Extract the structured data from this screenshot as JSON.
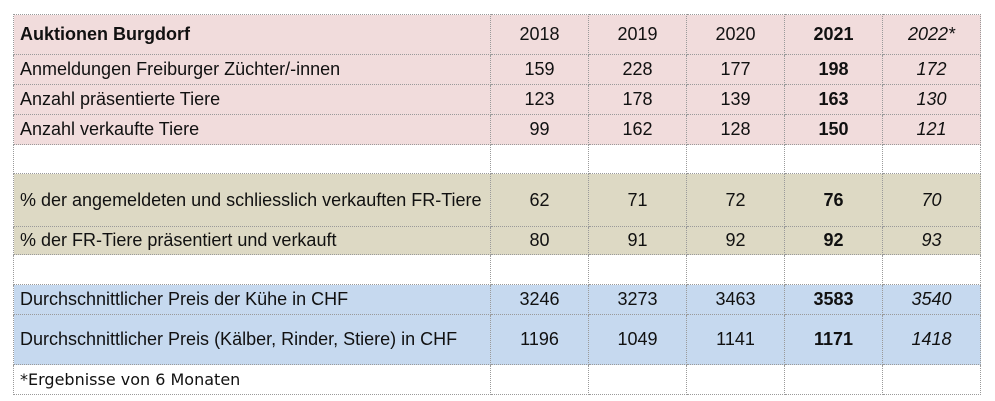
{
  "header": {
    "title": "Auktionen Burgdorf",
    "years": [
      "2018",
      "2019",
      "2020",
      "2021",
      "2022*"
    ]
  },
  "rows": [
    {
      "label": "Anmeldungen Freiburger Züchter/-innen",
      "values": [
        "159",
        "228",
        "177",
        "198",
        "172"
      ]
    },
    {
      "label": "Anzahl präsentierte Tiere",
      "values": [
        "123",
        "178",
        "139",
        "163",
        "130"
      ]
    },
    {
      "label": "Anzahl verkaufte Tiere",
      "values": [
        "99",
        "162",
        "128",
        "150",
        "121"
      ]
    },
    {
      "label": "% der angemeldeten und schliesslich verkauften FR-Tiere",
      "values": [
        "62",
        "71",
        "72",
        "76",
        "70"
      ]
    },
    {
      "label": "% der FR-Tiere präsentiert und verkauft",
      "values": [
        "80",
        "91",
        "92",
        "92",
        "93"
      ]
    },
    {
      "label": "Durchschnittlicher Preis der Kühe in CHF",
      "values": [
        "3246",
        "3273",
        "3463",
        "3583",
        "3540"
      ]
    },
    {
      "label": "Durchschnittlicher Preis (Kälber, Rinder, Stiere) in CHF",
      "values": [
        "1196",
        "1049",
        "1141",
        "1171",
        "1418"
      ]
    }
  ],
  "footnote": "*Ergebnisse von 6 Monaten",
  "colors": {
    "section_pink": "#f1dcdc",
    "section_olive": "#ddd9c4",
    "section_blue": "#c6d9ef"
  }
}
